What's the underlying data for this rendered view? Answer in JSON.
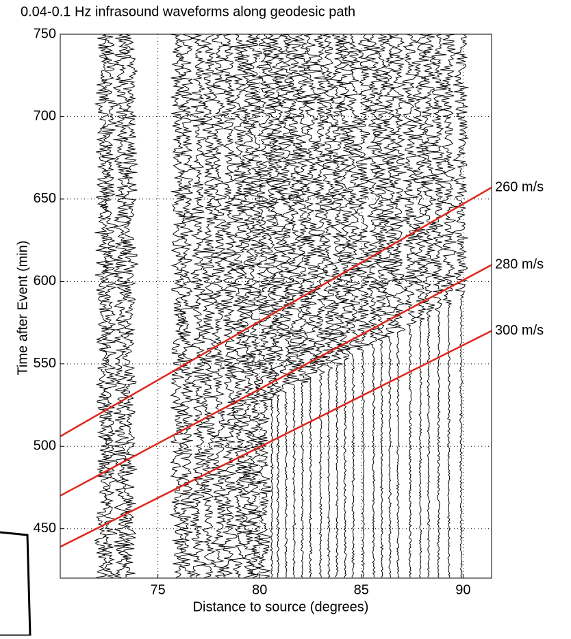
{
  "chart_data": {
    "type": "line",
    "title": "0.04-0.1 Hz infrasound waveforms along geodesic path",
    "xlabel": "Distance to source (degrees)",
    "ylabel": "Time after Event (min)",
    "x": [
      70.2,
      91.4
    ],
    "series": [
      {
        "name": "260 m/s",
        "color": "#e0261b",
        "values": [
          506,
          657
        ]
      },
      {
        "name": "280 m/s",
        "color": "#e0261b",
        "values": [
          470,
          610
        ]
      },
      {
        "name": "300 m/s",
        "color": "#e0261b",
        "values": [
          439,
          570
        ]
      }
    ],
    "trace_distances": [
      72.3,
      72.6,
      73.2,
      73.6,
      76.0,
      76.4,
      77.0,
      77.5,
      78.0,
      78.5,
      79.0,
      79.4,
      79.8,
      80.2,
      80.6,
      80.9,
      81.3,
      81.7,
      82.1,
      82.5,
      83.0,
      83.4,
      83.8,
      84.2,
      84.6,
      85.1,
      85.6,
      86.0,
      86.4,
      86.8,
      87.4,
      87.9,
      88.3,
      88.8,
      89.3,
      89.9
    ],
    "trace_color": "#000000",
    "xlim": [
      70.2,
      91.4
    ],
    "ylim": [
      420,
      750
    ],
    "xticks": [
      75,
      80,
      85,
      90
    ],
    "yticks": [
      450,
      500,
      550,
      600,
      650,
      700,
      750
    ],
    "grid": true
  }
}
